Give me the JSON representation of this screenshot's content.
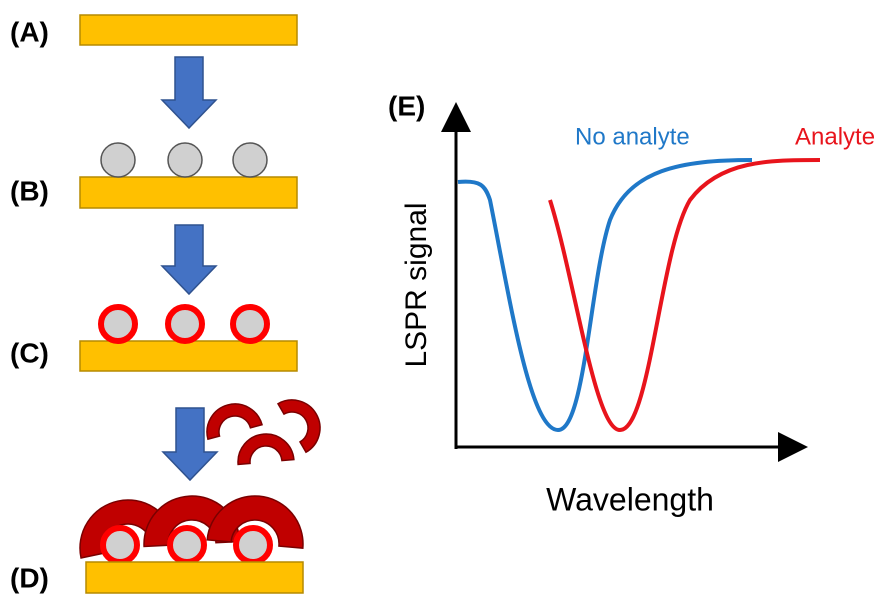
{
  "panels": [
    {
      "label": "(A)"
    },
    {
      "label": "(B)"
    },
    {
      "label": "(C)"
    },
    {
      "label": "(D)"
    }
  ],
  "graph": {
    "label": "(E)",
    "y_axis": "LSPR signal",
    "x_axis": "Wavelength",
    "curves": [
      {
        "name": "No analyte",
        "color": "#1f78c8"
      },
      {
        "name": "Analyte",
        "color": "#e8141c"
      }
    ]
  }
}
